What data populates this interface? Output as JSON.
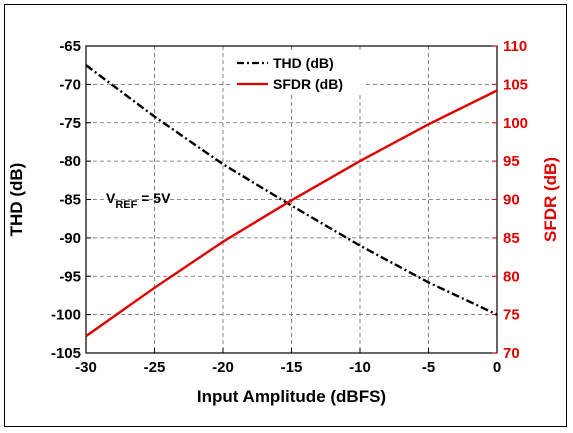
{
  "chart_data": {
    "type": "line",
    "xlabel": "Input Amplitude (dBFS)",
    "ylabel_left": "THD (dB)",
    "ylabel_right": "SFDR (dB)",
    "xlim": [
      -30,
      0
    ],
    "ylim_left": [
      -105,
      -65
    ],
    "ylim_right": [
      70,
      110
    ],
    "x_ticks": [
      -30,
      -25,
      -20,
      -15,
      -10,
      -5,
      0
    ],
    "y_left_ticks": [
      -65,
      -70,
      -75,
      -80,
      -85,
      -90,
      -95,
      -100,
      -105
    ],
    "y_right_ticks": [
      110,
      105,
      100,
      95,
      90,
      85,
      80,
      75,
      70
    ],
    "grid": true,
    "legend_position": "top-center",
    "annotation": {
      "main": "V",
      "sub": "REF",
      "rest": " = 5V"
    },
    "series": [
      {
        "name": "THD (dB)",
        "axis": "left",
        "color": "#000000",
        "style": "dash-dot",
        "x": [
          -30,
          -25,
          -20,
          -15,
          -10,
          -5,
          0
        ],
        "y": [
          -67.5,
          -74.2,
          -80.4,
          -85.8,
          -91,
          -95.8,
          -100
        ]
      },
      {
        "name": "SFDR (dB)",
        "axis": "right",
        "color": "#e00000",
        "style": "solid",
        "x": [
          -30,
          -25,
          -20,
          -15,
          -10,
          -5,
          0
        ],
        "y": [
          72.2,
          78.5,
          84.5,
          89.9,
          95,
          99.8,
          104.2
        ]
      }
    ]
  }
}
